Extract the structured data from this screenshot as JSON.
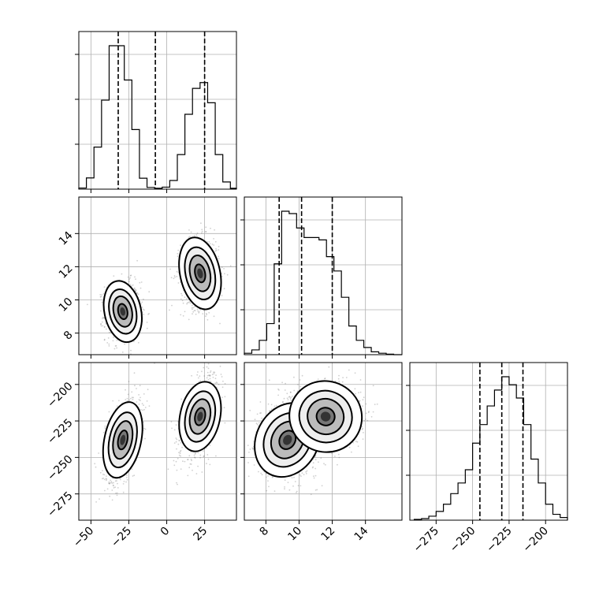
{
  "chart_data": {
    "type": "corner",
    "grid": true,
    "parameters": [
      {
        "index": 0,
        "range": [
          -58,
          46
        ],
        "ticks": [
          -50,
          -25,
          0,
          25
        ],
        "tick_labels": [
          "−50",
          "−25",
          "0",
          "25"
        ],
        "quantiles": [
          -32,
          -7.5,
          25
        ],
        "histogram": {
          "edges": [
            -58,
            -53,
            -48,
            -43,
            -38,
            -33,
            -28,
            -23,
            -18,
            -13,
            -8,
            -3,
            2,
            7,
            12,
            17,
            22,
            27,
            32,
            37,
            42,
            46
          ],
          "counts": [
            0.4,
            3.9,
            14.6,
            30.9,
            49.8,
            49.8,
            37.9,
            20.7,
            3.8,
            0.6,
            0.3,
            0.7,
            3.0,
            12.0,
            26.0,
            35.0,
            37.0,
            30.0,
            12.0,
            2.5,
            0.3
          ]
        }
      },
      {
        "index": 1,
        "range": [
          6.7,
          16.2
        ],
        "ticks": [
          8,
          10,
          12,
          14
        ],
        "tick_labels": [
          "8",
          "10",
          "12",
          "14"
        ],
        "quantiles": [
          8.8,
          10.15,
          12
        ],
        "histogram": {
          "edges": [
            6.7,
            7.15,
            7.6,
            8.05,
            8.5,
            8.95,
            9.4,
            9.85,
            10.3,
            10.75,
            11.2,
            11.65,
            12.1,
            12.55,
            13.0,
            13.45,
            13.9,
            14.35,
            14.8,
            15.25,
            15.7,
            16.2
          ],
          "counts": [
            0.3,
            1.0,
            3.0,
            6.5,
            19.0,
            30.0,
            29.5,
            26.5,
            24.5,
            24.5,
            24.0,
            20.5,
            17.5,
            12.0,
            6.0,
            3.0,
            1.5,
            0.6,
            0.3,
            0.1,
            0.0
          ]
        }
      },
      {
        "index": 2,
        "range": [
          -293,
          -185
        ],
        "ticks": [
          -275,
          -250,
          -225,
          -200
        ],
        "tick_labels": [
          "−275",
          "−250",
          "−225",
          "−200"
        ],
        "quantiles": [
          -245,
          -230,
          -215.5
        ],
        "histogram": {
          "edges": [
            -290,
            -285,
            -280,
            -275,
            -270,
            -265,
            -260,
            -255,
            -250,
            -245,
            -240,
            -235,
            -230,
            -225,
            -220,
            -215,
            -210,
            -205,
            -200,
            -195,
            -190,
            -185
          ],
          "counts": [
            0.3,
            0.6,
            1.5,
            3.3,
            6.0,
            10.0,
            14.0,
            19.0,
            29.0,
            36.0,
            43.0,
            49.0,
            54.0,
            51.0,
            46.0,
            36.0,
            23.0,
            14.0,
            6.0,
            2.2,
            1.0
          ]
        }
      }
    ],
    "clusters": [
      {
        "mean": [
          -29,
          9.3,
          -238
        ],
        "sd": [
          5.5,
          0.85,
          12
        ]
      },
      {
        "mean": [
          22,
          11.6,
          -222
        ],
        "sd": [
          6,
          1.0,
          11
        ]
      }
    ]
  }
}
